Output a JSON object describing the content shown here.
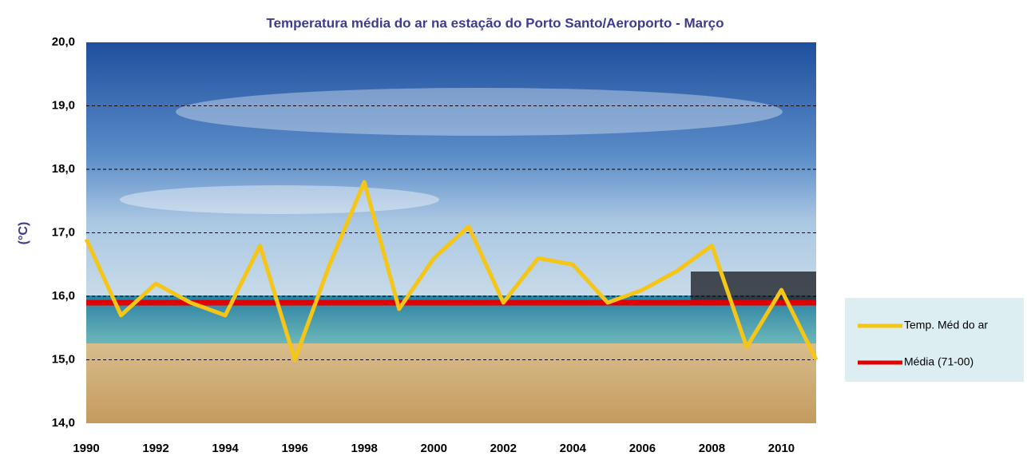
{
  "chart_data": {
    "type": "line",
    "title": "Temperatura média do ar na estação do Porto Santo/Aeroporto - Março",
    "y_label": "(°C)",
    "x": [
      1990,
      1991,
      1992,
      1993,
      1994,
      1995,
      1996,
      1997,
      1998,
      1999,
      2000,
      2001,
      2002,
      2003,
      2004,
      2005,
      2006,
      2007,
      2008,
      2009,
      2010,
      2011
    ],
    "series": [
      {
        "name": "Temp. Méd do ar",
        "color": "#f5c518",
        "values": [
          16.9,
          15.7,
          16.2,
          15.9,
          15.7,
          16.8,
          15.0,
          16.5,
          17.8,
          15.8,
          16.6,
          17.1,
          15.9,
          16.6,
          16.5,
          15.9,
          16.1,
          16.4,
          16.8,
          15.2,
          16.1,
          15.0
        ]
      },
      {
        "name": "Média (71-00)",
        "color": "#e00000",
        "values": [
          15.9,
          15.9,
          15.9,
          15.9,
          15.9,
          15.9,
          15.9,
          15.9,
          15.9,
          15.9,
          15.9,
          15.9,
          15.9,
          15.9,
          15.9,
          15.9,
          15.9,
          15.9,
          15.9,
          15.9,
          15.9,
          15.9
        ]
      }
    ],
    "xlim": [
      1990,
      2011
    ],
    "xticks": [
      1990,
      1992,
      1994,
      1996,
      1998,
      2000,
      2002,
      2004,
      2006,
      2008,
      2010
    ],
    "ylim": [
      14,
      20
    ],
    "yticks": [
      {
        "value": 14,
        "label": "14,0"
      },
      {
        "value": 15,
        "label": "15,0"
      },
      {
        "value": 16,
        "label": "16,0"
      },
      {
        "value": 17,
        "label": "17,0"
      },
      {
        "value": 18,
        "label": "18,0"
      },
      {
        "value": 19,
        "label": "19,0"
      },
      {
        "value": 20,
        "label": "20,0"
      }
    ],
    "grid": true
  }
}
